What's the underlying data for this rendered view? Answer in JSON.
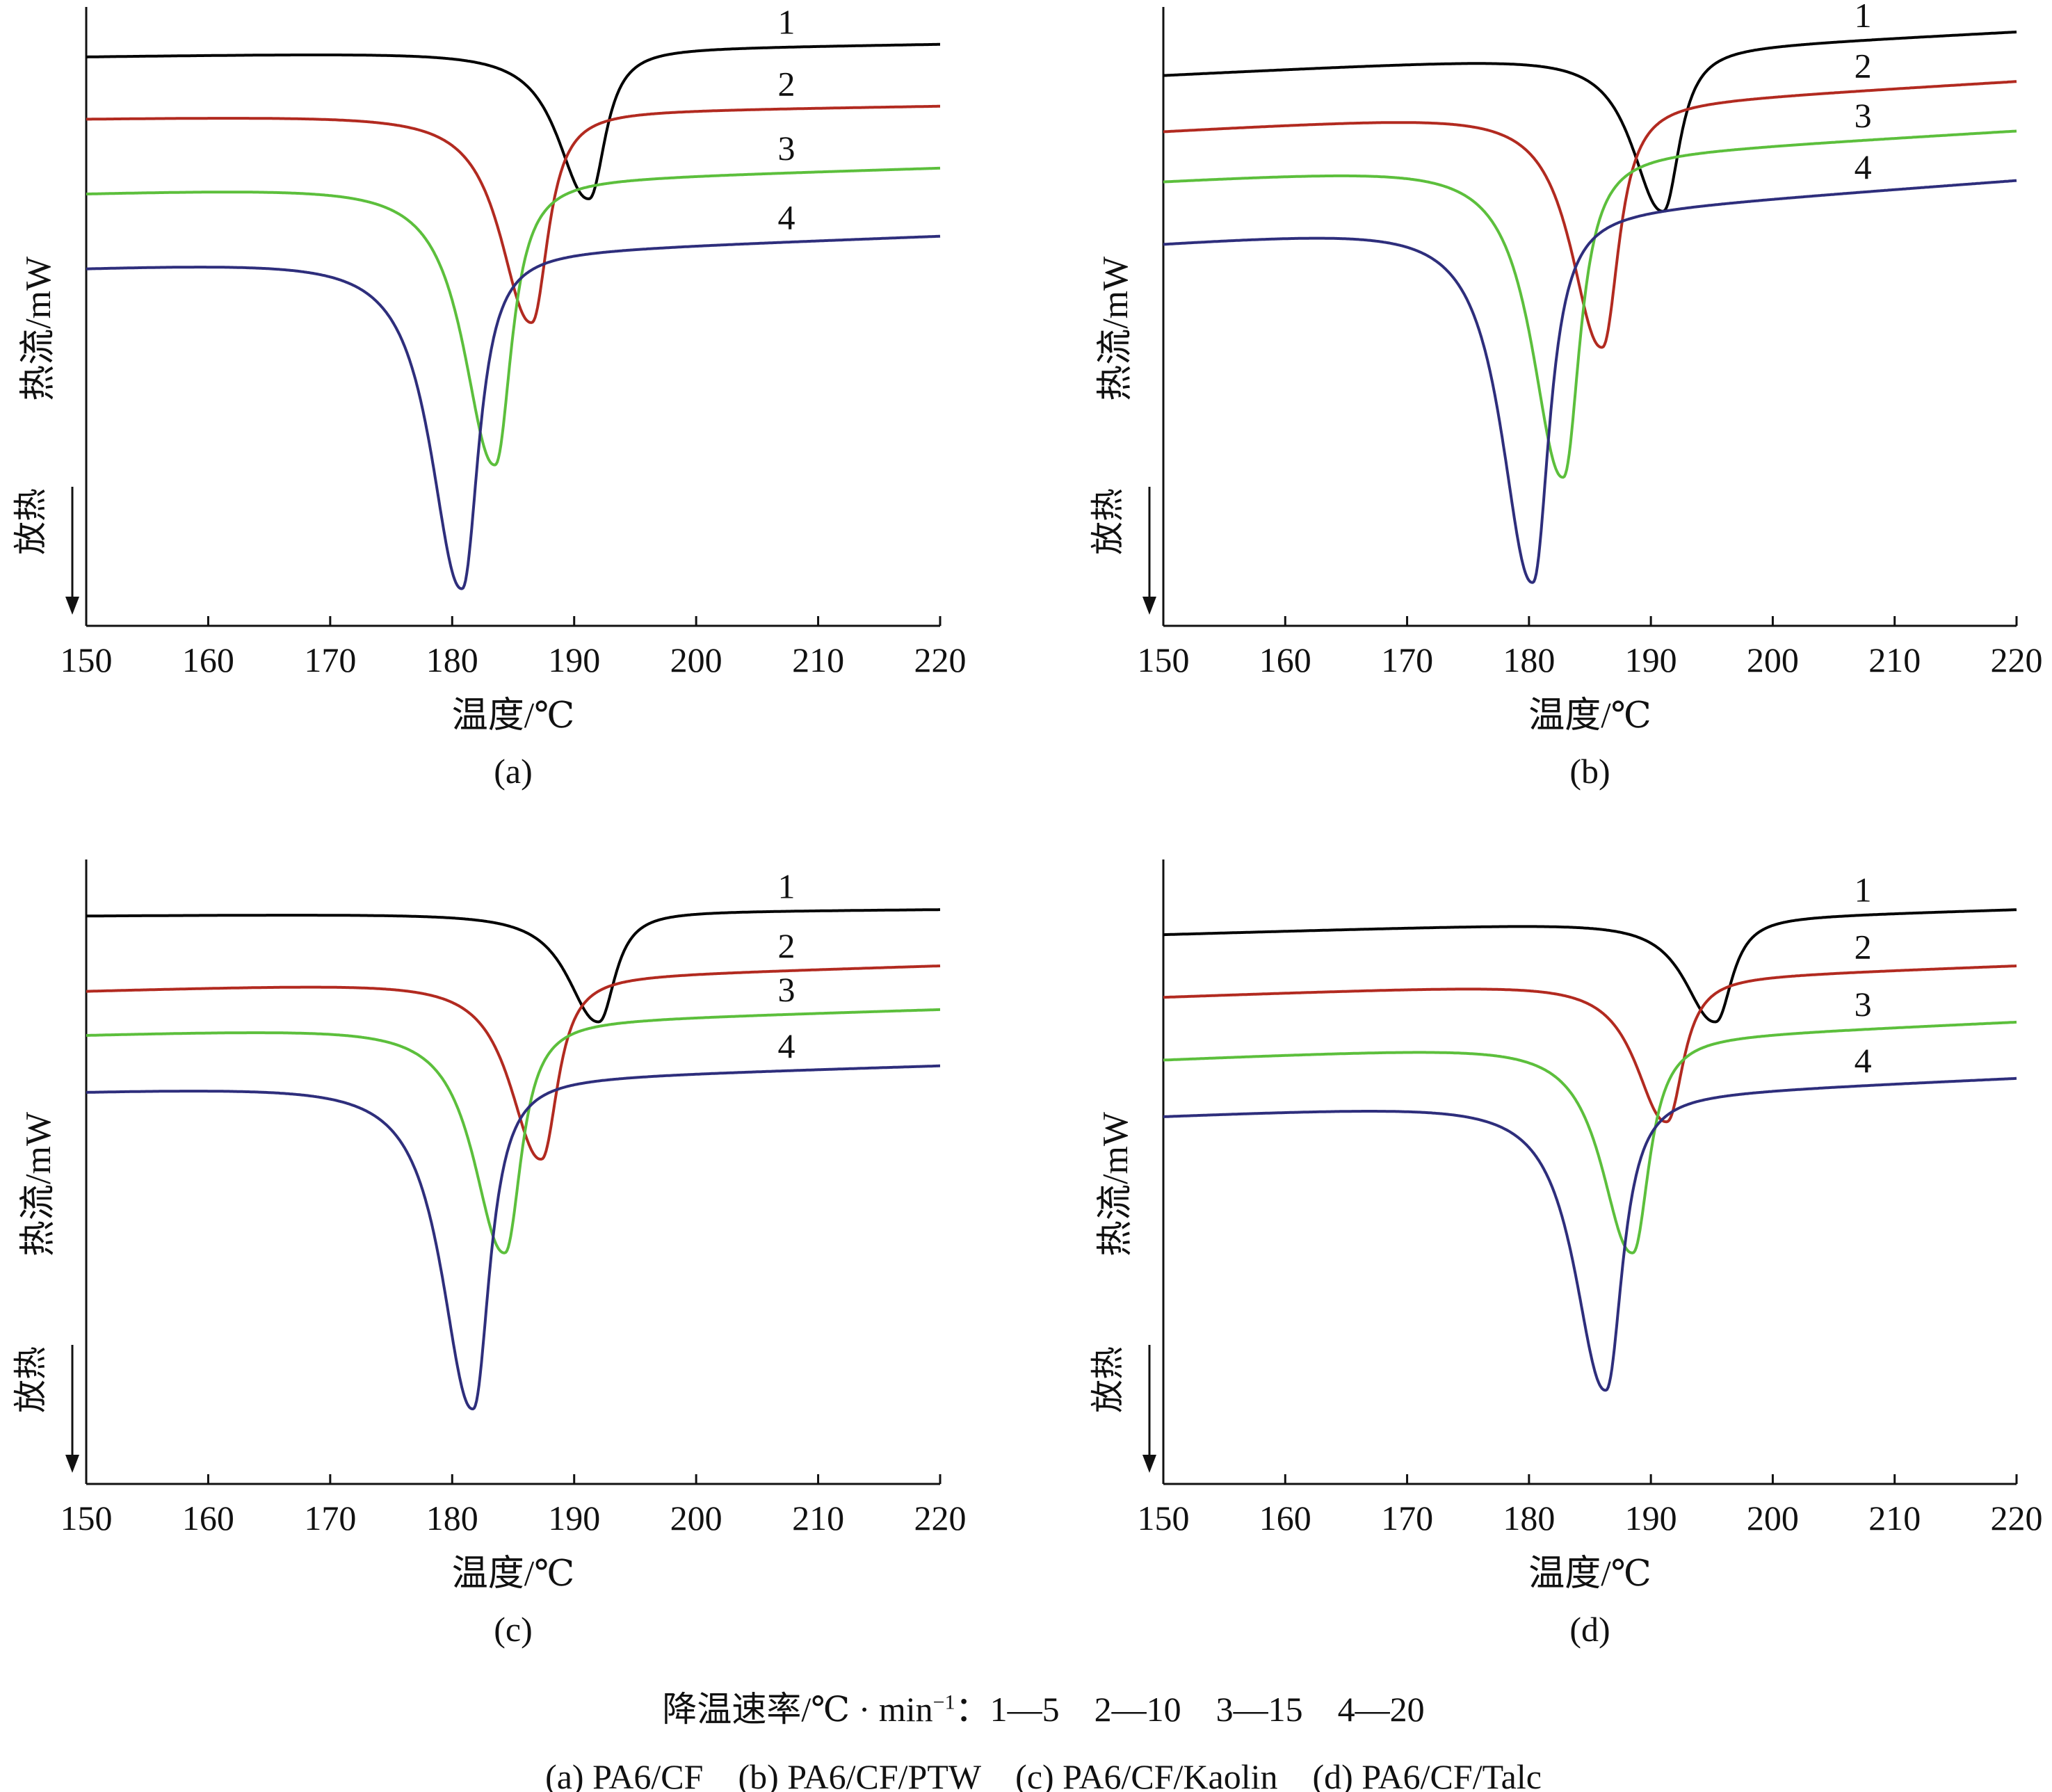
{
  "chart_data": [
    {
      "type": "line",
      "panel_label": "(a)",
      "xlabel": "温度/℃",
      "ylabel": "热流/mW",
      "exo_label": "放热",
      "xlim": [
        150,
        220
      ],
      "xticks": [
        "150",
        "160",
        "170",
        "180",
        "190",
        "200",
        "210",
        "220"
      ],
      "grid": false,
      "series": [
        {
          "name": "1",
          "color": "#000000",
          "baseline_start": 0.92,
          "baseline_end": 0.94,
          "peak_x": 191.2,
          "peak_y": 0.69
        },
        {
          "name": "2",
          "color": "#b22a20",
          "baseline_start": 0.82,
          "baseline_end": 0.84,
          "peak_x": 186.5,
          "peak_y": 0.49
        },
        {
          "name": "3",
          "color": "#5cbf3c",
          "baseline_start": 0.7,
          "baseline_end": 0.74,
          "peak_x": 183.5,
          "peak_y": 0.26
        },
        {
          "name": "4",
          "color": "#2e2e7c",
          "baseline_start": 0.58,
          "baseline_end": 0.63,
          "peak_x": 180.8,
          "peak_y": 0.06
        }
      ]
    },
    {
      "type": "line",
      "panel_label": "(b)",
      "xlabel": "温度/℃",
      "ylabel": "热流/mW",
      "exo_label": "放热",
      "xlim": [
        150,
        220
      ],
      "xticks": [
        "150",
        "160",
        "170",
        "180",
        "190",
        "200",
        "210",
        "220"
      ],
      "grid": false,
      "series": [
        {
          "name": "1",
          "color": "#000000",
          "baseline_start": 0.89,
          "baseline_end": 0.96,
          "peak_x": 191.0,
          "peak_y": 0.67
        },
        {
          "name": "2",
          "color": "#b22a20",
          "baseline_start": 0.8,
          "baseline_end": 0.88,
          "peak_x": 186.0,
          "peak_y": 0.45
        },
        {
          "name": "3",
          "color": "#5cbf3c",
          "baseline_start": 0.72,
          "baseline_end": 0.8,
          "peak_x": 182.8,
          "peak_y": 0.24
        },
        {
          "name": "4",
          "color": "#2e2e7c",
          "baseline_start": 0.62,
          "baseline_end": 0.72,
          "peak_x": 180.3,
          "peak_y": 0.07
        }
      ]
    },
    {
      "type": "line",
      "panel_label": "(c)",
      "xlabel": "温度/℃",
      "ylabel": "热流/mW",
      "exo_label": "放热",
      "xlim": [
        150,
        220
      ],
      "xticks": [
        "150",
        "160",
        "170",
        "180",
        "190",
        "200",
        "210",
        "220"
      ],
      "grid": false,
      "series": [
        {
          "name": "1",
          "color": "#000000",
          "baseline_start": 0.91,
          "baseline_end": 0.92,
          "peak_x": 192.0,
          "peak_y": 0.74
        },
        {
          "name": "2",
          "color": "#b22a20",
          "baseline_start": 0.79,
          "baseline_end": 0.83,
          "peak_x": 187.3,
          "peak_y": 0.52
        },
        {
          "name": "3",
          "color": "#5cbf3c",
          "baseline_start": 0.72,
          "baseline_end": 0.76,
          "peak_x": 184.3,
          "peak_y": 0.37
        },
        {
          "name": "4",
          "color": "#2e2e7c",
          "baseline_start": 0.63,
          "baseline_end": 0.67,
          "peak_x": 181.7,
          "peak_y": 0.12
        }
      ]
    },
    {
      "type": "line",
      "panel_label": "(d)",
      "xlabel": "温度/℃",
      "ylabel": "热流/mW",
      "exo_label": "放热",
      "xlim": [
        150,
        220
      ],
      "xticks": [
        "150",
        "160",
        "170",
        "180",
        "190",
        "200",
        "210",
        "220"
      ],
      "grid": false,
      "series": [
        {
          "name": "1",
          "color": "#000000",
          "baseline_start": 0.88,
          "baseline_end": 0.92,
          "peak_x": 195.3,
          "peak_y": 0.74
        },
        {
          "name": "2",
          "color": "#b22a20",
          "baseline_start": 0.78,
          "baseline_end": 0.83,
          "peak_x": 191.3,
          "peak_y": 0.58
        },
        {
          "name": "3",
          "color": "#5cbf3c",
          "baseline_start": 0.68,
          "baseline_end": 0.74,
          "peak_x": 188.5,
          "peak_y": 0.37
        },
        {
          "name": "4",
          "color": "#2e2e7c",
          "baseline_start": 0.59,
          "baseline_end": 0.65,
          "peak_x": 186.3,
          "peak_y": 0.15
        }
      ]
    }
  ],
  "legend": {
    "rates_prefix": "降温速率/℃ · min",
    "rates_exponent": "−1",
    "rates_items": "：1—5    2—10    3—15    4—20",
    "materials": "(a) PA6/CF    (b) PA6/CF/PTW    (c) PA6/CF/Kaolin    (d) PA6/CF/Talc"
  }
}
